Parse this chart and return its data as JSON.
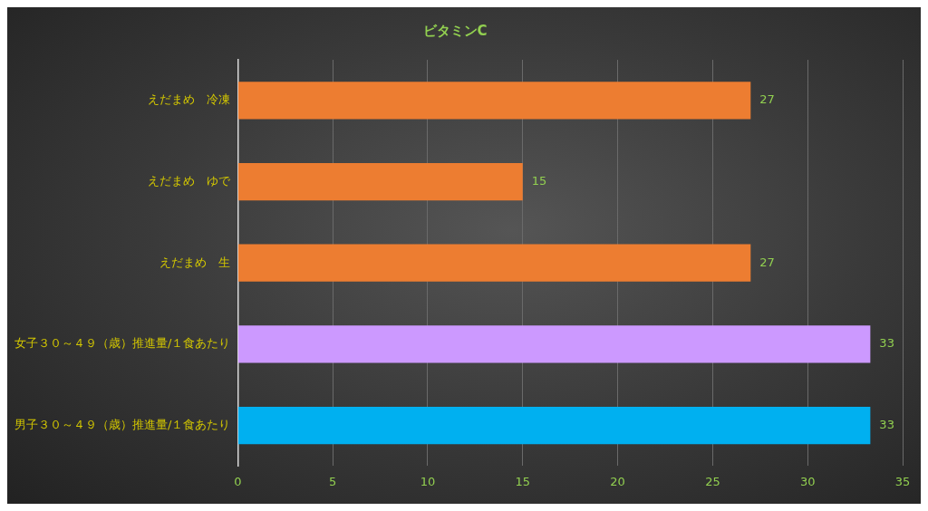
{
  "chart_data": {
    "type": "bar",
    "orientation": "horizontal",
    "title": "ビタミンC",
    "categories": [
      "えだまめ　冷凍",
      "えだまめ　ゆで",
      "えだまめ　生",
      "女子３０～４９（歳）推進量/１食あたり",
      "男子３０～４９（歳）推進量/１食あたり"
    ],
    "values": [
      27,
      15,
      27,
      33.3,
      33.3
    ],
    "value_labels": [
      "27",
      "15",
      "27",
      "33",
      "33"
    ],
    "colors": [
      "#ed7d31",
      "#ed7d31",
      "#ed7d31",
      "#cc99ff",
      "#00b0f0"
    ],
    "xlim": [
      0,
      35
    ],
    "xticks": [
      0,
      5,
      10,
      15,
      20,
      25,
      30,
      35
    ],
    "grid": "x",
    "legend": false
  }
}
